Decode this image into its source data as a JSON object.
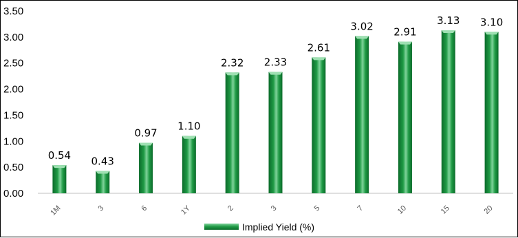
{
  "chart_data": {
    "type": "bar",
    "categories": [
      "1M",
      "3",
      "6",
      "1Y",
      "2",
      "3",
      "5",
      "7",
      "10",
      "15",
      "20"
    ],
    "series": [
      {
        "name": "Implied Yield (%)",
        "values": [
          0.54,
          0.43,
          0.97,
          1.1,
          2.32,
          2.33,
          2.61,
          3.02,
          2.91,
          3.13,
          3.1
        ],
        "labels": [
          "0.54",
          "0.43",
          "0.97",
          "1.10",
          "2.32",
          "2.33",
          "2.61",
          "3.02",
          "2.91",
          "3.13",
          "3.10"
        ]
      }
    ],
    "ylim": [
      0,
      3.5
    ],
    "yticks": [
      "0.00",
      "0.50",
      "1.00",
      "1.50",
      "2.00",
      "2.50",
      "3.00",
      "3.50"
    ],
    "grid": false,
    "legend": "bottom",
    "colors": {
      "bar_dark": "#0b6b2a",
      "bar_mid": "#1f9a45",
      "bar_light": "#7fd39a",
      "bar_top": "#9ee0b2"
    }
  }
}
